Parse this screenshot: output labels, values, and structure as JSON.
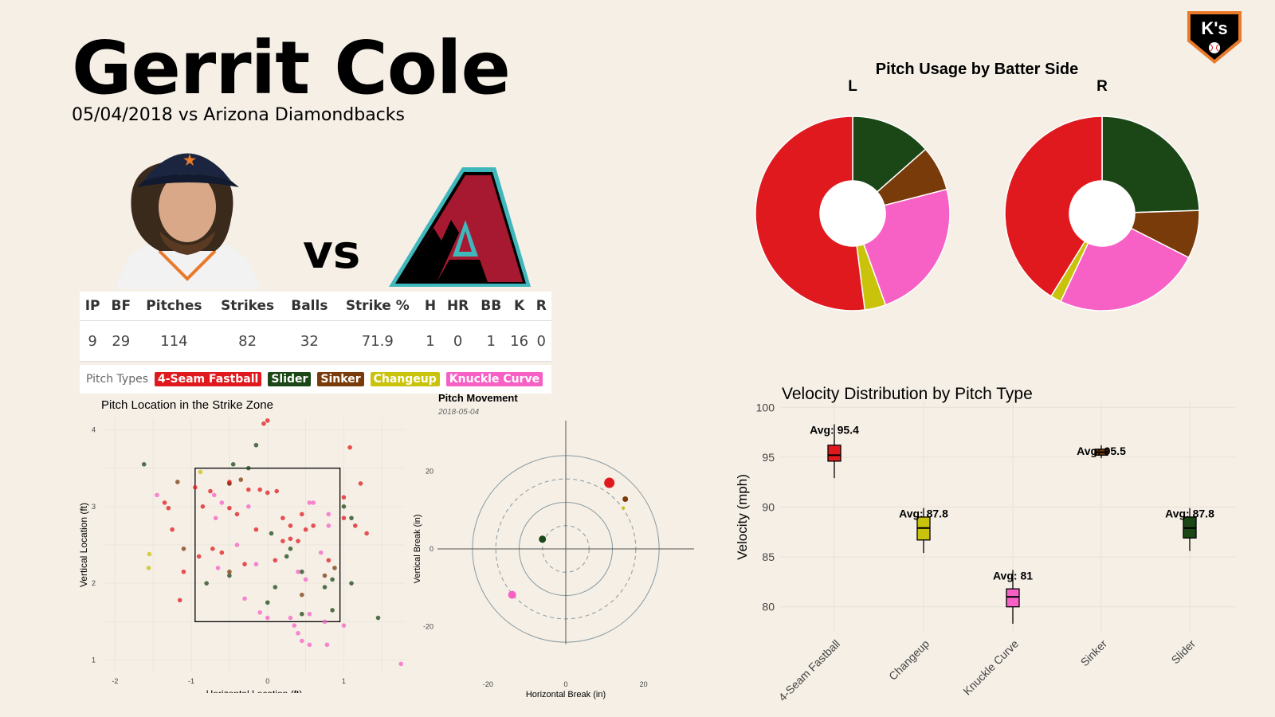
{
  "header": {
    "title": "Gerrit Cole",
    "subtitle": "05/04/2018 vs Arizona Diamondbacks",
    "vs": "vs",
    "logo_text": "K's"
  },
  "stats": {
    "headers": [
      "IP",
      "BF",
      "Pitches",
      "Strikes",
      "Balls",
      "Strike %",
      "H",
      "HR",
      "BB",
      "K",
      "R"
    ],
    "values": [
      "9",
      "29",
      "114",
      "82",
      "32",
      "71.9",
      "1",
      "0",
      "1",
      "16",
      "0"
    ]
  },
  "pitch_types": {
    "label": "Pitch Types",
    "items": [
      {
        "name": "4-Seam Fastball",
        "color": "#e0191e"
      },
      {
        "name": "Slider",
        "color": "#1b4716"
      },
      {
        "name": "Sinker",
        "color": "#7a3b0a"
      },
      {
        "name": "Changeup",
        "color": "#c9c30c"
      },
      {
        "name": "Knuckle Curve",
        "color": "#f760c5"
      }
    ]
  },
  "chart_data": [
    {
      "type": "pie",
      "title": "Pitch Usage by Batter Side",
      "donut": true,
      "facets": [
        {
          "label": "L",
          "slices": [
            {
              "name": "Slider",
              "value": 13.5
            },
            {
              "name": "Sinker",
              "value": 7.5
            },
            {
              "name": "Knuckle Curve",
              "value": 23.5
            },
            {
              "name": "Changeup",
              "value": 3.5
            },
            {
              "name": "4-Seam Fastball",
              "value": 52.0
            }
          ]
        },
        {
          "label": "R",
          "slices": [
            {
              "name": "Slider",
              "value": 24.5
            },
            {
              "name": "Sinker",
              "value": 8.0
            },
            {
              "name": "Knuckle Curve",
              "value": 24.5
            },
            {
              "name": "Changeup",
              "value": 1.8
            },
            {
              "name": "4-Seam Fastball",
              "value": 41.2
            }
          ]
        }
      ]
    },
    {
      "type": "scatter",
      "title": "Pitch Location in the Strike Zone",
      "xlabel": "Horizontal Location (ft)",
      "ylabel": "Vertical Location (ft)",
      "xlim": [
        -2.15,
        1.8
      ],
      "ylim": [
        0.85,
        4.15
      ],
      "xticks": [
        -2,
        -1,
        0,
        1
      ],
      "yticks": [
        1,
        2,
        3,
        4
      ],
      "zone": {
        "x": [
          -0.95,
          0.95
        ],
        "y": [
          1.5,
          3.5
        ]
      },
      "points": [
        {
          "t": "Slider",
          "x": -1.62,
          "y": 3.55
        },
        {
          "t": "Slider",
          "x": -0.45,
          "y": 3.55
        },
        {
          "t": "Slider",
          "x": -0.15,
          "y": 3.8
        },
        {
          "t": "Slider",
          "x": -0.25,
          "y": 3.5
        },
        {
          "t": "Slider",
          "x": 0.05,
          "y": 2.65
        },
        {
          "t": "Slider",
          "x": 0.25,
          "y": 2.35
        },
        {
          "t": "Slider",
          "x": 0.0,
          "y": 1.75
        },
        {
          "t": "Slider",
          "x": -0.5,
          "y": 2.1
        },
        {
          "t": "Slider",
          "x": 0.45,
          "y": 2.15
        },
        {
          "t": "Slider",
          "x": 0.1,
          "y": 1.95
        },
        {
          "t": "Slider",
          "x": 0.75,
          "y": 1.95
        },
        {
          "t": "Slider",
          "x": 0.85,
          "y": 2.05
        },
        {
          "t": "Slider",
          "x": 1.0,
          "y": 3.0
        },
        {
          "t": "Slider",
          "x": 1.1,
          "y": 2.85
        },
        {
          "t": "Slider",
          "x": 1.1,
          "y": 2.0
        },
        {
          "t": "Slider",
          "x": 1.45,
          "y": 1.55
        },
        {
          "t": "Slider",
          "x": -0.8,
          "y": 2.0
        },
        {
          "t": "Slider",
          "x": 0.85,
          "y": 1.65
        },
        {
          "t": "Slider",
          "x": 0.45,
          "y": 1.6
        },
        {
          "t": "Slider",
          "x": -0.5,
          "y": 3.3
        },
        {
          "t": "Slider",
          "x": 0.3,
          "y": 2.45
        },
        {
          "t": "Sinker",
          "x": -1.18,
          "y": 3.32
        },
        {
          "t": "Sinker",
          "x": -1.1,
          "y": 2.45
        },
        {
          "t": "Sinker",
          "x": -0.35,
          "y": 3.35
        },
        {
          "t": "Sinker",
          "x": -0.5,
          "y": 3.3
        },
        {
          "t": "Sinker",
          "x": 0.45,
          "y": 1.85
        },
        {
          "t": "Sinker",
          "x": 0.75,
          "y": 2.1
        },
        {
          "t": "Sinker",
          "x": 0.88,
          "y": 2.2
        },
        {
          "t": "Sinker",
          "x": -0.5,
          "y": 2.15
        },
        {
          "t": "Changeup",
          "x": -1.55,
          "y": 2.38
        },
        {
          "t": "Changeup",
          "x": -1.56,
          "y": 2.2
        },
        {
          "t": "Changeup",
          "x": -0.88,
          "y": 3.45
        },
        {
          "t": "Knuckle Curve",
          "x": -1.45,
          "y": 3.15
        },
        {
          "t": "Knuckle Curve",
          "x": -0.7,
          "y": 3.15
        },
        {
          "t": "Knuckle Curve",
          "x": -0.6,
          "y": 3.05
        },
        {
          "t": "Knuckle Curve",
          "x": -0.68,
          "y": 2.85
        },
        {
          "t": "Knuckle Curve",
          "x": -0.25,
          "y": 3.0
        },
        {
          "t": "Knuckle Curve",
          "x": 0.55,
          "y": 3.05
        },
        {
          "t": "Knuckle Curve",
          "x": 0.6,
          "y": 3.05
        },
        {
          "t": "Knuckle Curve",
          "x": 0.8,
          "y": 2.75
        },
        {
          "t": "Knuckle Curve",
          "x": 0.8,
          "y": 2.9
        },
        {
          "t": "Knuckle Curve",
          "x": -0.4,
          "y": 2.5
        },
        {
          "t": "Knuckle Curve",
          "x": -0.15,
          "y": 2.25
        },
        {
          "t": "Knuckle Curve",
          "x": -0.65,
          "y": 2.2
        },
        {
          "t": "Knuckle Curve",
          "x": 0.4,
          "y": 2.15
        },
        {
          "t": "Knuckle Curve",
          "x": 0.5,
          "y": 2.05
        },
        {
          "t": "Knuckle Curve",
          "x": -0.3,
          "y": 1.8
        },
        {
          "t": "Knuckle Curve",
          "x": -0.1,
          "y": 1.62
        },
        {
          "t": "Knuckle Curve",
          "x": 0.0,
          "y": 1.55
        },
        {
          "t": "Knuckle Curve",
          "x": 0.3,
          "y": 1.55
        },
        {
          "t": "Knuckle Curve",
          "x": 0.35,
          "y": 1.45
        },
        {
          "t": "Knuckle Curve",
          "x": 0.55,
          "y": 1.6
        },
        {
          "t": "Knuckle Curve",
          "x": 0.4,
          "y": 1.35
        },
        {
          "t": "Knuckle Curve",
          "x": 0.45,
          "y": 1.25
        },
        {
          "t": "Knuckle Curve",
          "x": 0.55,
          "y": 1.2
        },
        {
          "t": "Knuckle Curve",
          "x": 0.78,
          "y": 1.2
        },
        {
          "t": "Knuckle Curve",
          "x": 1.0,
          "y": 1.45
        },
        {
          "t": "Knuckle Curve",
          "x": 1.75,
          "y": 0.95
        },
        {
          "t": "Knuckle Curve",
          "x": 0.75,
          "y": 1.5
        },
        {
          "t": "Knuckle Curve",
          "x": 0.7,
          "y": 2.4
        },
        {
          "t": "4-Seam Fastball",
          "x": -0.05,
          "y": 4.08
        },
        {
          "t": "4-Seam Fastball",
          "x": 0.0,
          "y": 4.12
        },
        {
          "t": "4-Seam Fastball",
          "x": 1.08,
          "y": 3.77
        },
        {
          "t": "4-Seam Fastball",
          "x": -0.5,
          "y": 3.32
        },
        {
          "t": "4-Seam Fastball",
          "x": -0.95,
          "y": 3.25
        },
        {
          "t": "4-Seam Fastball",
          "x": -0.75,
          "y": 3.2
        },
        {
          "t": "4-Seam Fastball",
          "x": -0.25,
          "y": 3.22
        },
        {
          "t": "4-Seam Fastball",
          "x": -0.1,
          "y": 3.22
        },
        {
          "t": "4-Seam Fastball",
          "x": 0.0,
          "y": 3.18
        },
        {
          "t": "4-Seam Fastball",
          "x": 0.12,
          "y": 3.2
        },
        {
          "t": "4-Seam Fastball",
          "x": 1.0,
          "y": 3.12
        },
        {
          "t": "4-Seam Fastball",
          "x": 1.22,
          "y": 3.3
        },
        {
          "t": "4-Seam Fastball",
          "x": -1.35,
          "y": 3.05
        },
        {
          "t": "4-Seam Fastball",
          "x": -1.3,
          "y": 2.98
        },
        {
          "t": "4-Seam Fastball",
          "x": -0.85,
          "y": 3.0
        },
        {
          "t": "4-Seam Fastball",
          "x": -0.5,
          "y": 2.98
        },
        {
          "t": "4-Seam Fastball",
          "x": -1.25,
          "y": 2.7
        },
        {
          "t": "4-Seam Fastball",
          "x": -0.4,
          "y": 2.9
        },
        {
          "t": "4-Seam Fastball",
          "x": 0.2,
          "y": 2.85
        },
        {
          "t": "4-Seam Fastball",
          "x": 0.3,
          "y": 2.75
        },
        {
          "t": "4-Seam Fastball",
          "x": 0.5,
          "y": 2.7
        },
        {
          "t": "4-Seam Fastball",
          "x": 0.6,
          "y": 2.75
        },
        {
          "t": "4-Seam Fastball",
          "x": 0.45,
          "y": 2.9
        },
        {
          "t": "4-Seam Fastball",
          "x": 1.0,
          "y": 2.85
        },
        {
          "t": "4-Seam Fastball",
          "x": 1.15,
          "y": 2.75
        },
        {
          "t": "4-Seam Fastball",
          "x": 1.3,
          "y": 2.65
        },
        {
          "t": "4-Seam Fastball",
          "x": 0.4,
          "y": 2.55
        },
        {
          "t": "4-Seam Fastball",
          "x": -0.15,
          "y": 2.7
        },
        {
          "t": "4-Seam Fastball",
          "x": -0.6,
          "y": 2.4
        },
        {
          "t": "4-Seam Fastball",
          "x": -0.9,
          "y": 2.35
        },
        {
          "t": "4-Seam Fastball",
          "x": -1.1,
          "y": 2.15
        },
        {
          "t": "4-Seam Fastball",
          "x": -1.15,
          "y": 1.78
        },
        {
          "t": "4-Seam Fastball",
          "x": -0.3,
          "y": 2.25
        },
        {
          "t": "4-Seam Fastball",
          "x": 0.3,
          "y": 2.58
        },
        {
          "t": "4-Seam Fastball",
          "x": 0.2,
          "y": 2.55
        },
        {
          "t": "4-Seam Fastball",
          "x": -0.72,
          "y": 2.45
        },
        {
          "t": "4-Seam Fastball",
          "x": 0.1,
          "y": 2.3
        },
        {
          "t": "4-Seam Fastball",
          "x": 0.8,
          "y": 2.3
        }
      ]
    },
    {
      "type": "scatter",
      "title": "Pitch Movement",
      "subtitle": "2018-05-04",
      "xlabel": "Horizontal Break (in)",
      "ylabel": "Vertical Break (in)",
      "xlim": [
        -33,
        33
      ],
      "ylim": [
        -33,
        33
      ],
      "xticks": [
        -20,
        0,
        20
      ],
      "yticks": [
        -20,
        0,
        20
      ],
      "rings": [
        {
          "r": 6,
          "dashed": true
        },
        {
          "r": 12,
          "dashed": false
        },
        {
          "r": 18,
          "dashed": true
        },
        {
          "r": 24,
          "dashed": false
        }
      ],
      "points": [
        {
          "t": "4-Seam Fastball",
          "x": 11.2,
          "y": 17.0,
          "size": 6.5
        },
        {
          "t": "Sinker",
          "x": 15.3,
          "y": 12.8,
          "size": 3.5
        },
        {
          "t": "Changeup",
          "x": 14.8,
          "y": 10.5,
          "size": 2
        },
        {
          "t": "Slider",
          "x": -6.0,
          "y": 2.5,
          "size": 4.5
        },
        {
          "t": "Knuckle Curve",
          "x": -13.8,
          "y": -11.8,
          "size": 5
        }
      ]
    },
    {
      "type": "box",
      "title": "Velocity Distribution by Pitch Type",
      "xlabel": "",
      "ylabel": "Velocity (mph)",
      "ylim": [
        77.5,
        100.5
      ],
      "yticks": [
        80,
        85,
        90,
        95,
        100
      ],
      "boxes": [
        {
          "category": "4-Seam Fastball",
          "min": 92.9,
          "q1": 94.6,
          "median": 95.2,
          "q3": 96.2,
          "max": 98.3,
          "avg_label": "Avg: 95.4",
          "color": "#e0191e"
        },
        {
          "category": "Changeup",
          "min": 85.4,
          "q1": 86.7,
          "median": 87.9,
          "q3": 89.0,
          "max": 89.9,
          "avg_label": "Avg: 87.8",
          "color": "#c9c30c"
        },
        {
          "category": "Knuckle Curve",
          "min": 78.3,
          "q1": 80.0,
          "median": 81.0,
          "q3": 81.8,
          "max": 83.7,
          "avg_label": "Avg: 81",
          "color": "#f760c5"
        },
        {
          "category": "Sinker",
          "min": 94.9,
          "q1": 95.2,
          "median": 95.5,
          "q3": 95.8,
          "max": 96.2,
          "avg_label": "Avg: 95.5",
          "color": "#7a3b0a"
        },
        {
          "category": "Slider",
          "min": 85.6,
          "q1": 86.9,
          "median": 87.9,
          "q3": 89.0,
          "max": 89.9,
          "avg_label": "Avg: 87.8",
          "color": "#1b4716"
        }
      ]
    }
  ]
}
